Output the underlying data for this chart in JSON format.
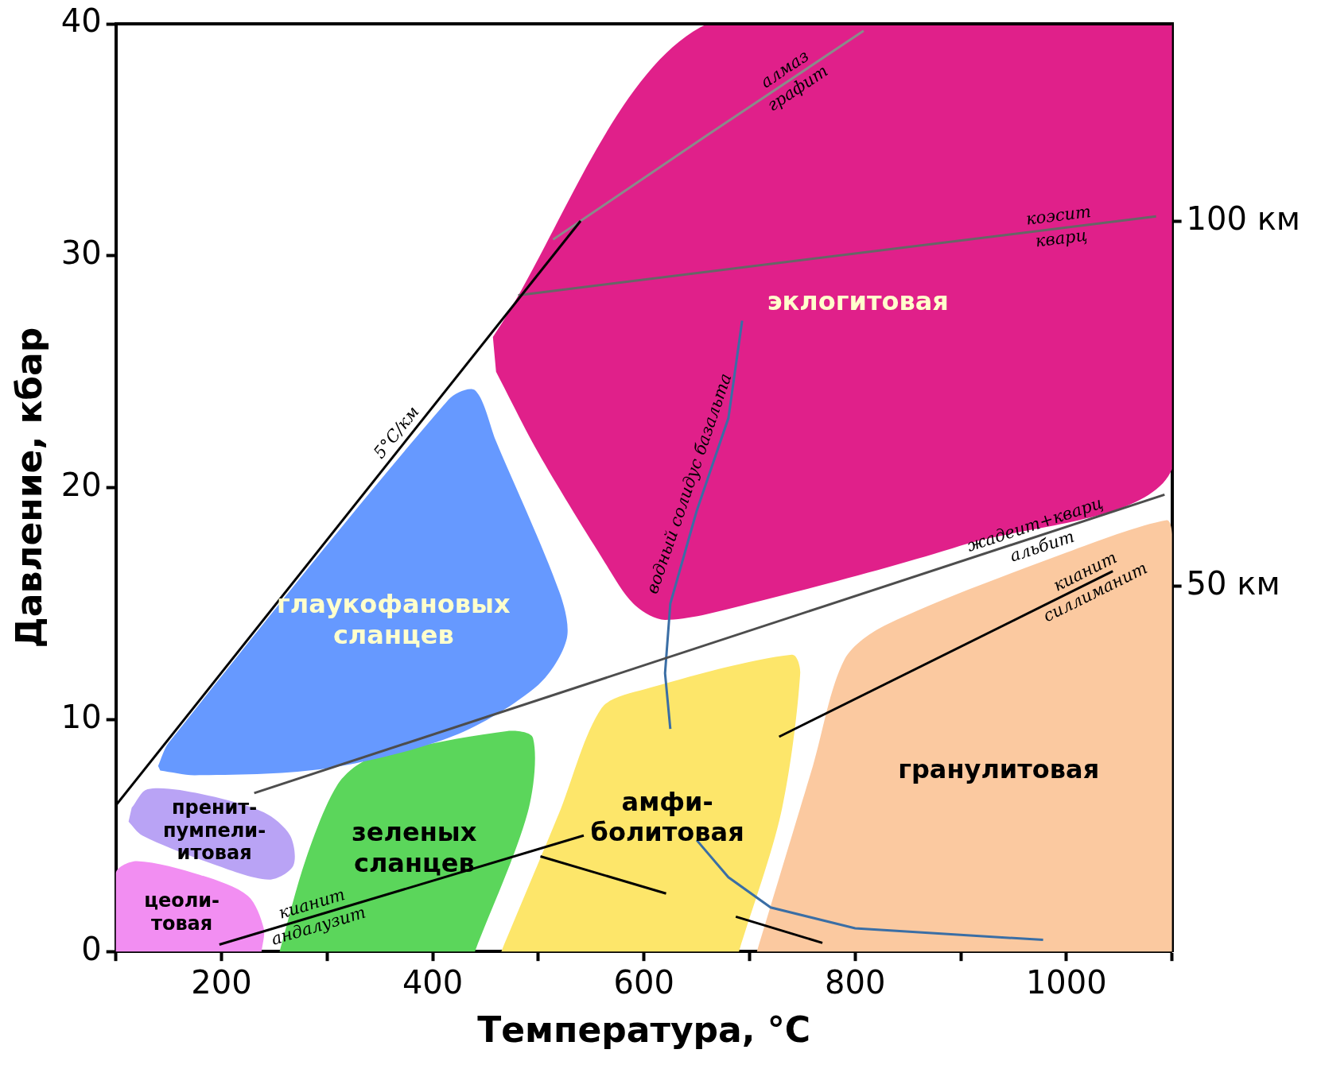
{
  "chart_data": {
    "type": "area",
    "xlabel": "Температура, °C",
    "ylabel": "Давление, кбар",
    "xlim": [
      100,
      1100
    ],
    "ylim": [
      0,
      40
    ],
    "y2lim": [
      0,
      127
    ],
    "xticks": [
      {
        "value": 100,
        "label": null
      },
      200,
      {
        "value": 300,
        "label": null
      },
      400,
      {
        "value": 500,
        "label": null
      },
      600,
      {
        "value": 700,
        "label": null
      },
      800,
      {
        "value": 900,
        "label": null
      },
      1000,
      {
        "value": 1100,
        "label": null
      }
    ],
    "yticks": [
      0,
      10,
      20,
      30,
      40
    ],
    "y2ticks": [
      {
        "value": 50,
        "label": "50 км"
      },
      {
        "value": 100,
        "label": "100 км"
      }
    ],
    "grid": false,
    "legend": false,
    "series": [
      {
        "name": "цеоли-\nтовая",
        "color": "#f28ef2",
        "x": [
          100,
          100,
          120,
          180,
          225,
          240,
          238
        ],
        "values": [
          0,
          3.4,
          3.9,
          3.3,
          2.4,
          1.0,
          0
        ]
      },
      {
        "name": "пренит-\nпумпели-\nитовая",
        "color": "#b9a3f5",
        "x": [
          115,
          130,
          180,
          240,
          265,
          268,
          245,
          190,
          125,
          112
        ],
        "values": [
          6.2,
          7.0,
          6.8,
          6.0,
          5.0,
          3.7,
          3.1,
          3.8,
          5.0,
          5.6
        ]
      },
      {
        "name": "зеленых\nсланцев",
        "color": "#5bd65b",
        "x": [
          255,
          280,
          310,
          340,
          470,
          495,
          490,
          440
        ],
        "values": [
          0,
          4,
          7.2,
          8.3,
          9.5,
          9.2,
          6,
          0
        ]
      },
      {
        "name": "глаукофановых\nсланцев",
        "color": "#6699ff",
        "x": [
          140,
          150,
          415,
          440,
          460,
          520,
          527,
          500,
          420,
          300,
          175,
          142
        ],
        "values": [
          8.0,
          9,
          23.8,
          24.2,
          22,
          15.5,
          13.5,
          11.5,
          9.3,
          7.9,
          7.6,
          7.8
        ]
      },
      {
        "name": "эклогитовая",
        "color": "#e0208a",
        "x": [
          457,
          660,
          1100,
          1100,
          900,
          700,
          620,
          590,
          560,
          500,
          460
        ],
        "values": [
          26.5,
          40,
          40,
          20.8,
          17.5,
          15.0,
          14.3,
          15.0,
          17,
          21.5,
          25
        ]
      },
      {
        "name": "амфи-\nболитовая",
        "color": "#fde66a",
        "x": [
          465,
          520,
          560,
          600,
          740,
          748,
          730,
          690
        ],
        "values": [
          0,
          6,
          10.5,
          11.3,
          12.8,
          12,
          6,
          0
        ]
      },
      {
        "name": "гранулитовая",
        "color": "#fbc9a0",
        "x": [
          707,
          760,
          790,
          830,
          1000,
          1095,
          1100,
          1100
        ],
        "values": [
          0,
          8,
          12.6,
          14.1,
          17.2,
          18.6,
          18.0,
          0
        ]
      },
      {
        "type": "line",
        "color": "#000000",
        "x": [
          100,
          540
        ],
        "values": [
          6.3,
          31.5
        ]
      },
      {
        "type": "line",
        "color": "#8a8a8a",
        "x": [
          514,
          660,
          808
        ],
        "values": [
          30.7,
          35.2,
          39.7
        ]
      },
      {
        "type": "line",
        "color": "#666666",
        "x": [
          481,
          1085
        ],
        "values": [
          28.3,
          31.7
        ]
      },
      {
        "type": "line",
        "color": "#4d4d4d",
        "x": [
          231,
          1093
        ],
        "values": [
          6.83,
          19.7
        ]
      },
      {
        "type": "line",
        "color": "#000000",
        "x": [
          728,
          1044
        ],
        "values": [
          9.26,
          16.4
        ]
      },
      {
        "type": "line",
        "color": "#000000",
        "x": [
          198,
          543
        ],
        "values": [
          0.3,
          5.0
        ]
      },
      {
        "type": "line",
        "color": "#000000",
        "x": [
          502,
          621,
          null,
          687,
          769
        ],
        "values": [
          4.1,
          2.5,
          null,
          1.5,
          0.37
        ]
      },
      {
        "type": "line",
        "color": "#3a6ea5",
        "x": [
          693,
          680,
          650,
          625,
          620,
          625,
          null,
          650,
          680,
          720,
          800,
          978
        ],
        "values": [
          27.2,
          23,
          19,
          15,
          12,
          9.6,
          null,
          4.8,
          3.2,
          1.9,
          1.0,
          0.5
        ]
      }
    ],
    "annotations": [
      {
        "text": "алмаз\nграфит",
        "x": 740,
        "y": 37.6
      },
      {
        "text": "коэсит\nкварц",
        "x": 994,
        "y": 31.2
      },
      {
        "text": "жадеит+кварц\nальбит",
        "x": 974,
        "y": 17.9
      },
      {
        "text": "кианит\nсиллиманит",
        "x": 1023,
        "y": 15.9
      },
      {
        "text": "кианит\nандалузит",
        "x": 289,
        "y": 1.54
      },
      {
        "text": "5°C/км",
        "x": 375,
        "y": 22.05
      },
      {
        "text": "водный солидус базальта",
        "x": 654,
        "y": 20
      }
    ]
  }
}
